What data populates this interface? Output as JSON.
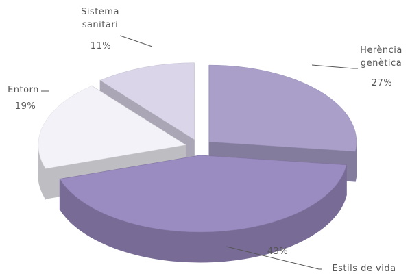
{
  "chart_data": {
    "type": "pie3d",
    "categories": [
      "Herència genètica",
      "Estils de vida",
      "Entorn",
      "Sistema sanitari"
    ],
    "values": [
      27,
      43,
      19,
      11
    ],
    "value_labels": [
      "27%",
      "43%",
      "19%",
      "11%"
    ],
    "colors": [
      "#a99fc9",
      "#9a8bc0",
      "#f3f2f8",
      "#dad5e9"
    ]
  }
}
